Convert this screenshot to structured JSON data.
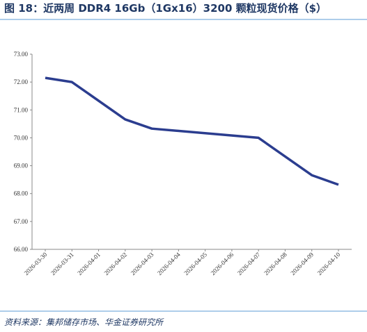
{
  "chart_data": {
    "type": "line",
    "title": "图 18：近两周 DDR4 16Gb（1Gx16）3200 颗粒现货价格（$）",
    "source": "资料来源：集邦储存市场、华金证券研究所",
    "x": [
      "2026-03-30",
      "2026-03-31",
      "2026-04-02",
      "2026-04-03",
      "2026-04-07",
      "2026-04-09",
      "2026-04-10"
    ],
    "series": [
      {
        "color": "#2b3d8f",
        "values": [
          72.15,
          72.0,
          70.66,
          70.33,
          70.0,
          68.66,
          68.32
        ]
      }
    ],
    "xlim": [
      "2026-03-30",
      "2026-04-10"
    ],
    "xticks": [
      "2026-03-30",
      "2026-03-31",
      "2026-04-01",
      "2026-04-02",
      "2026-04-03",
      "2026-04-04",
      "2026-04-05",
      "2026-04-06",
      "2026-04-07",
      "2026-04-08",
      "2026-04-09",
      "2026-04-10"
    ],
    "ylim": [
      66,
      73
    ],
    "yticks": [
      {
        "value": 66,
        "label": "66.00"
      },
      {
        "value": 67,
        "label": "67.00"
      },
      {
        "value": 68,
        "label": "68.00"
      },
      {
        "value": 69,
        "label": "69.00"
      },
      {
        "value": 70,
        "label": "70.00"
      },
      {
        "value": 71,
        "label": "71.00"
      },
      {
        "value": 72,
        "label": "72.00"
      },
      {
        "value": 73,
        "label": "73.00"
      }
    ],
    "grid": false
  }
}
